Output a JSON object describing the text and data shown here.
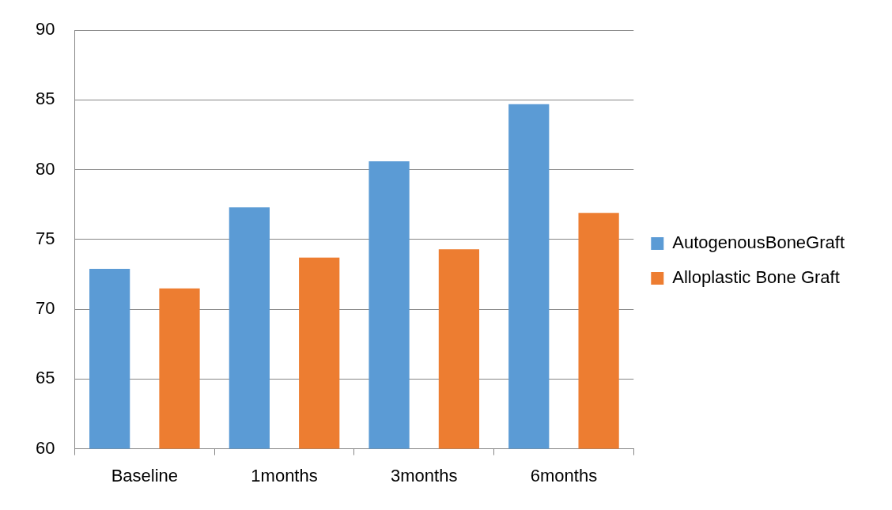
{
  "chart_data": {
    "type": "bar",
    "categories": [
      "Baseline",
      "1months",
      "3months",
      "6months"
    ],
    "series": [
      {
        "name": "AutogenousBoneGraft",
        "color": "#5b9bd5",
        "values": [
          72.9,
          77.3,
          80.6,
          84.7
        ]
      },
      {
        "name": "Alloplastic Bone Graft",
        "color": "#ed7d31",
        "values": [
          71.5,
          73.7,
          74.3,
          76.9
        ]
      }
    ],
    "ylim": [
      60,
      90
    ],
    "yticks": [
      60,
      65,
      70,
      75,
      80,
      85,
      90
    ],
    "grid": "y",
    "legend": "right"
  }
}
